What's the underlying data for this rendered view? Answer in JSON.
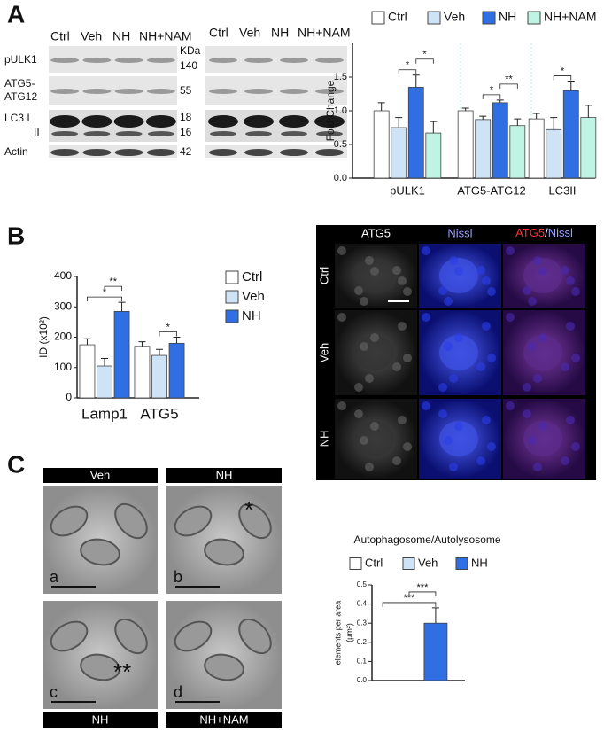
{
  "figure": {
    "panels": [
      "A",
      "B",
      "C"
    ]
  },
  "blots": {
    "lanes": [
      "Ctrl",
      "Veh",
      "NH",
      "NH+NAM"
    ],
    "lanes_right": [
      "Ctrl",
      "Veh",
      "NH",
      "NH+NAM"
    ],
    "row_labels": [
      "pULK1",
      "ATG5-",
      "ATG12",
      "LC3  I",
      "II",
      "Actin"
    ],
    "kda": [
      "KDa",
      "140",
      "55",
      "18",
      "16",
      "42"
    ]
  },
  "microscopy": {
    "columns": [
      "ATG5",
      "Nissl"
    ],
    "merged": [
      "ATG5",
      "/",
      "Nissl"
    ],
    "rows": [
      "Ctrl",
      "Veh",
      "NH"
    ]
  },
  "em": {
    "headers": [
      "Veh",
      "NH"
    ],
    "footers": [
      "NH",
      "NH+NAM"
    ],
    "letters": [
      "a",
      "b",
      "c",
      "d"
    ],
    "marks": [
      "*",
      "**"
    ]
  },
  "chart_data": [
    {
      "type": "bar",
      "ylabel": "Fold Change",
      "categories": [
        "pULK1",
        "ATG5-ATG12",
        "LC3II"
      ],
      "series": [
        {
          "name": "Ctrl",
          "color": "#ffffff",
          "values": [
            1.0,
            1.0,
            0.88
          ],
          "errors": [
            0.12,
            0.04,
            0.08
          ]
        },
        {
          "name": "Veh",
          "color": "#cfe3f7",
          "values": [
            0.75,
            0.87,
            0.72
          ],
          "errors": [
            0.15,
            0.05,
            0.18
          ]
        },
        {
          "name": "NH",
          "color": "#2f6fe3",
          "values": [
            1.35,
            1.12,
            1.3
          ],
          "errors": [
            0.18,
            0.04,
            0.14
          ]
        },
        {
          "name": "NH+NAM",
          "color": "#bff3e3",
          "values": [
            0.67,
            0.78,
            0.9
          ],
          "errors": [
            0.17,
            0.1,
            0.18
          ]
        }
      ],
      "ylim": [
        0,
        2.0
      ],
      "yticks": [
        {
          "value": 0,
          "label": "0.0"
        },
        {
          "value": 0.5,
          "label": "0.5"
        },
        {
          "value": 1,
          "label": "1.0"
        },
        {
          "value": 1.5,
          "label": "1.5"
        }
      ],
      "annotations": [
        {
          "text": "*",
          "category": "pULK1",
          "series": [
            "Veh",
            "NH"
          ]
        },
        {
          "text": "*",
          "category": "pULK1",
          "series": [
            "NH",
            "NH+NAM"
          ]
        },
        {
          "text": "*",
          "category": "ATG5-ATG12",
          "series": [
            "Veh",
            "NH"
          ]
        },
        {
          "text": "**",
          "category": "ATG5-ATG12",
          "series": [
            "NH",
            "NH+NAM"
          ]
        },
        {
          "text": "*",
          "category": "LC3II",
          "series": [
            "Veh",
            "NH"
          ]
        }
      ],
      "legend": "top"
    },
    {
      "type": "bar",
      "ylabel": "ID (x10²)",
      "categories": [
        "Lamp1",
        "ATG5"
      ],
      "series": [
        {
          "name": "Ctrl",
          "color": "#ffffff",
          "values": [
            175,
            170
          ],
          "errors": [
            20,
            15
          ]
        },
        {
          "name": "Veh",
          "color": "#cfe3f7",
          "values": [
            105,
            140
          ],
          "errors": [
            25,
            20
          ]
        },
        {
          "name": "NH",
          "color": "#2f6fe3",
          "values": [
            285,
            180
          ],
          "errors": [
            30,
            20
          ]
        }
      ],
      "ylim": [
        0,
        400
      ],
      "yticks": [
        0,
        100,
        200,
        300,
        400
      ],
      "annotations": [
        {
          "text": "*",
          "category": "Lamp1",
          "series": [
            "Ctrl",
            "NH"
          ]
        },
        {
          "text": "**",
          "category": "Lamp1",
          "series": [
            "Veh",
            "NH"
          ]
        },
        {
          "text": "*",
          "category": "ATG5",
          "series": [
            "Veh",
            "NH"
          ]
        }
      ],
      "legend": "right"
    },
    {
      "type": "bar",
      "title": "Autophagosome/Autolysosome",
      "ylabel": [
        "elements per area",
        "(μm²)"
      ],
      "categories": [
        null
      ],
      "series": [
        {
          "name": "Ctrl",
          "color": "#ffffff",
          "values": [
            0.0
          ],
          "errors": [
            0.0
          ]
        },
        {
          "name": "Veh",
          "color": "#cfe3f7",
          "values": [
            0.0
          ],
          "errors": [
            0.0
          ]
        },
        {
          "name": "NH",
          "color": "#2f6fe3",
          "values": [
            0.3
          ],
          "errors": [
            0.08
          ]
        }
      ],
      "ylim": [
        0,
        0.5
      ],
      "yticks": [
        {
          "value": 0,
          "label": "0.0"
        },
        {
          "value": 0.1,
          "label": "0.1"
        },
        {
          "value": 0.2,
          "label": "0.2"
        },
        {
          "value": 0.3,
          "label": "0.3"
        },
        {
          "value": 0.4,
          "label": "0.4"
        },
        {
          "value": 0.5,
          "label": "0.5"
        }
      ],
      "annotations": [
        {
          "text": "***",
          "category": null,
          "series": [
            "Ctrl",
            "NH"
          ]
        },
        {
          "text": "***",
          "category": null,
          "series": [
            "Veh",
            "NH"
          ]
        }
      ],
      "legend": "top"
    }
  ]
}
